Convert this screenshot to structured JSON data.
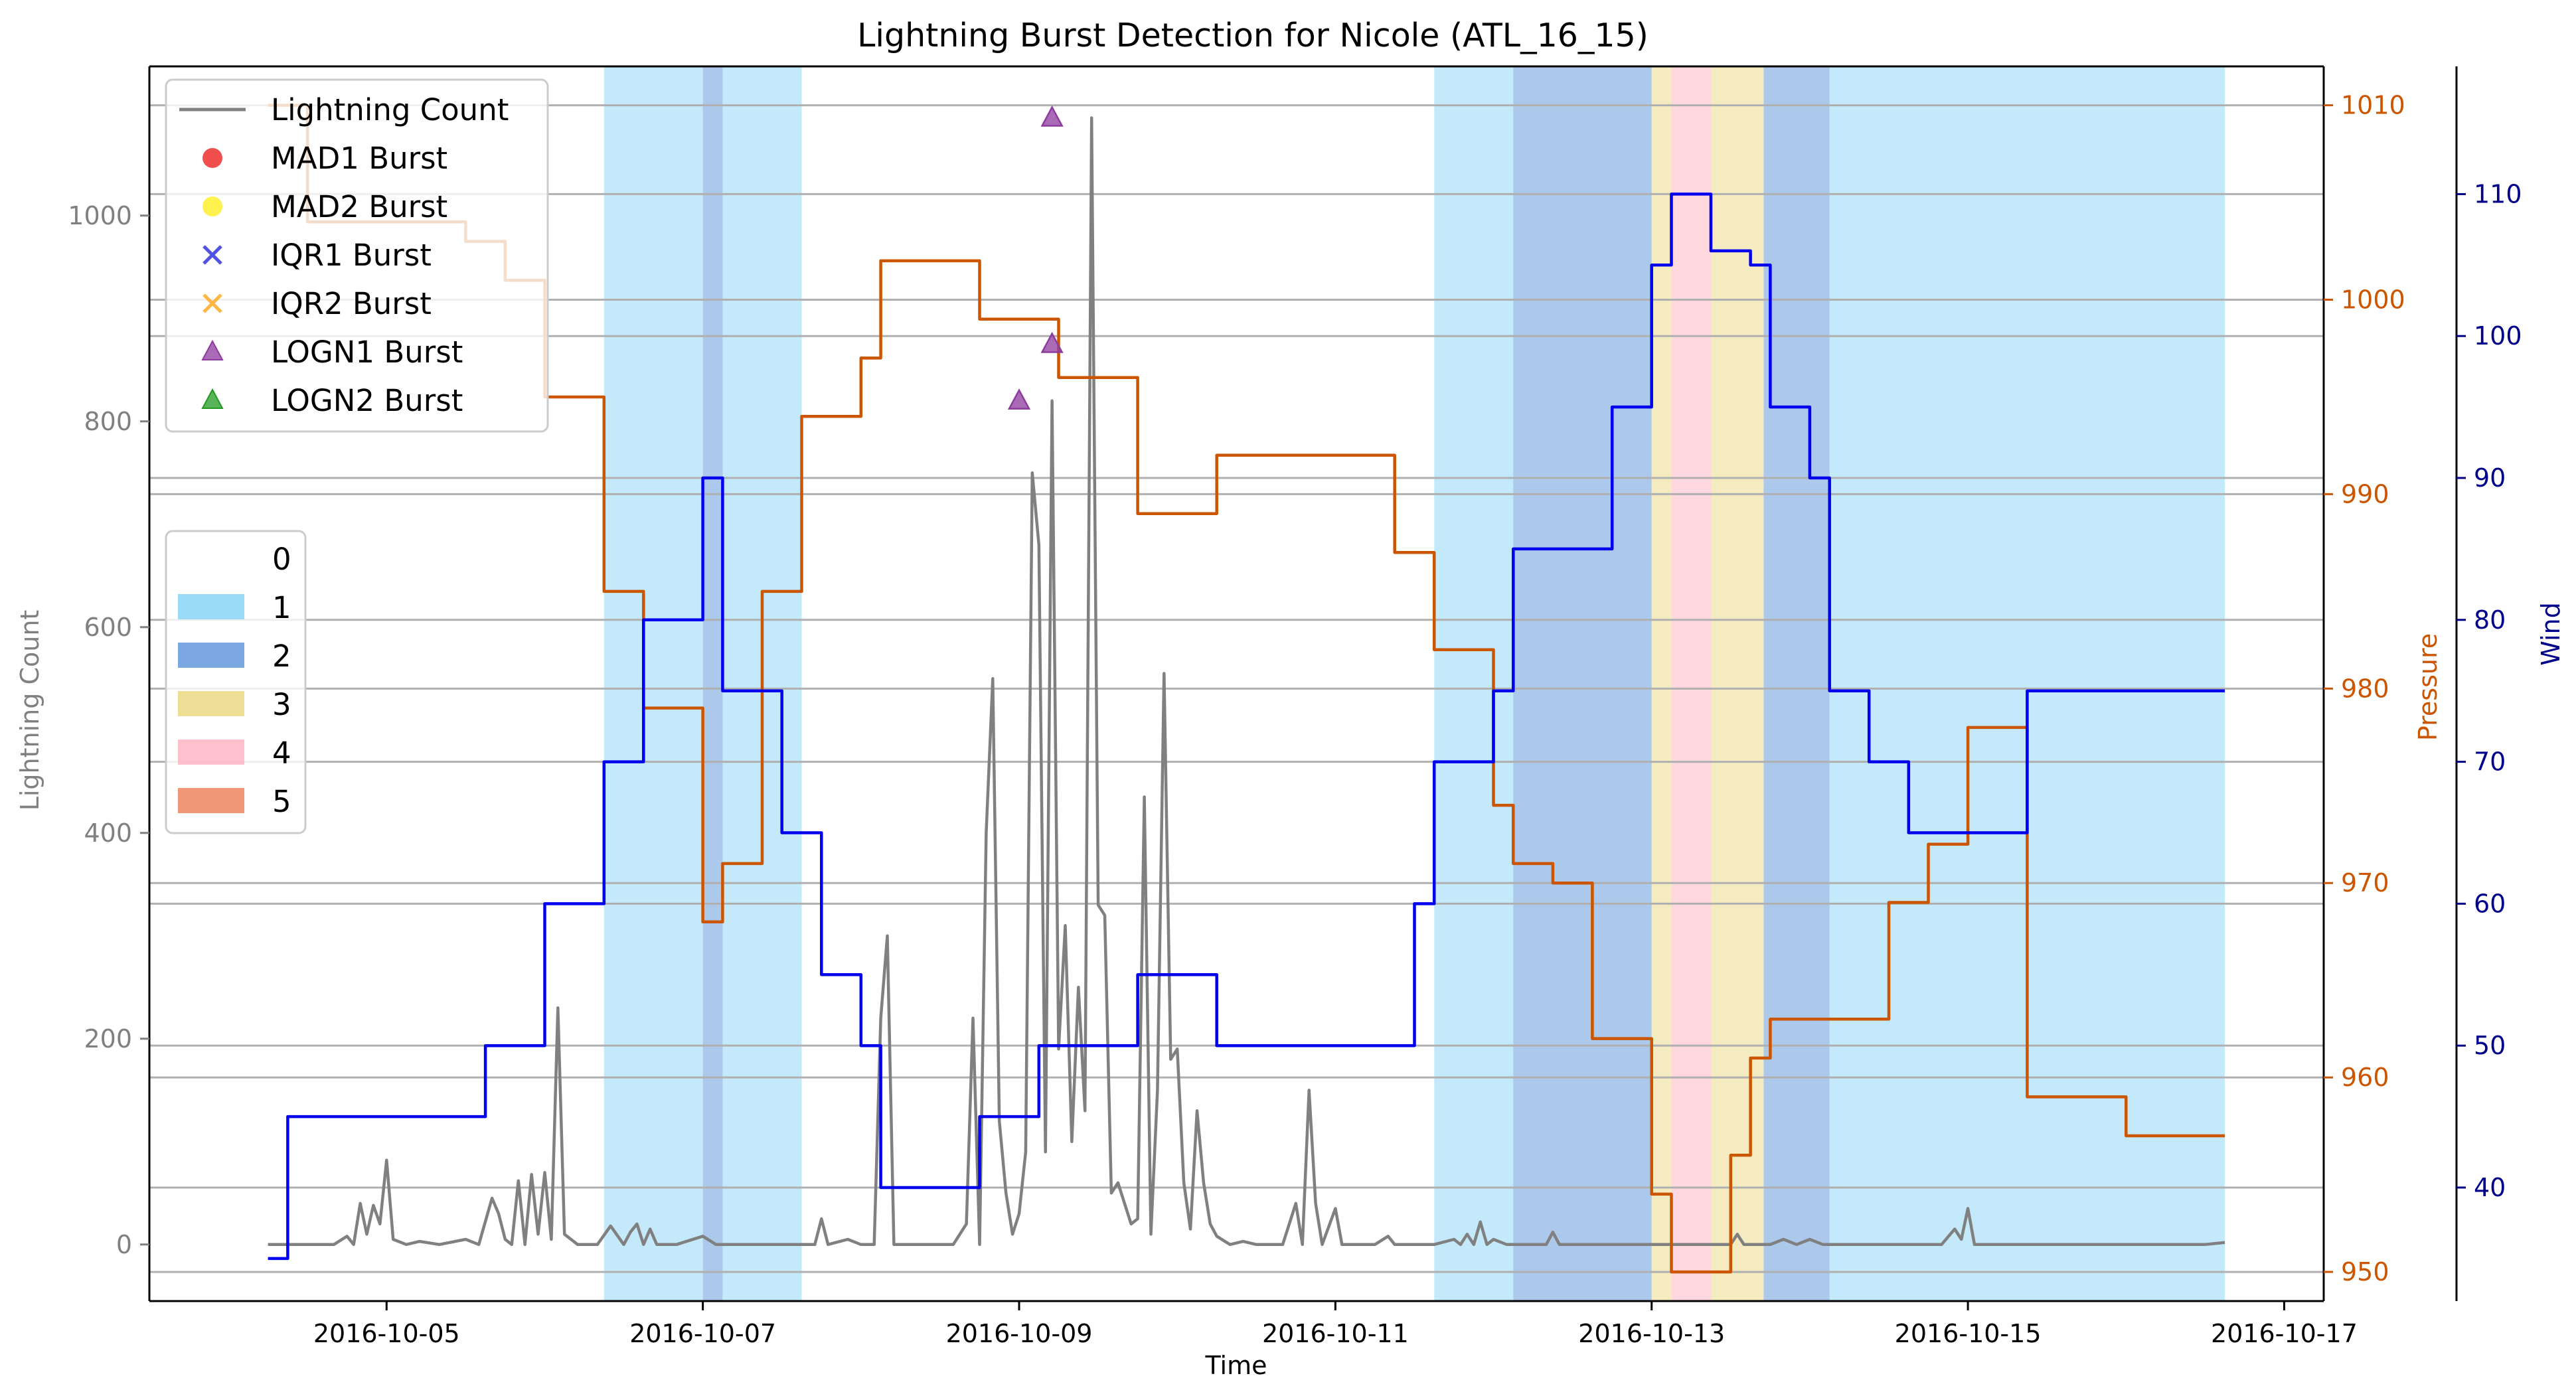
{
  "chart_data": {
    "type": "line",
    "title": "Lightning Burst Detection for Nicole (ATL_16_15)",
    "xlabel": "Time",
    "ylabel_left": "Lightning Count",
    "ylabel_right_1": "Pressure",
    "ylabel_right_2": "Wind",
    "x_range": [
      "2016-10-03T12:00",
      "2016-10-17T06:00"
    ],
    "x_ticks": [
      "2016-10-05",
      "2016-10-07",
      "2016-10-09",
      "2016-10-11",
      "2016-10-13",
      "2016-10-15",
      "2016-10-17"
    ],
    "y_left_range": [
      -55,
      1145
    ],
    "y_left_ticks": [
      0,
      200,
      400,
      600,
      800,
      1000
    ],
    "y_pressure_range": [
      948.5,
      1012
    ],
    "y_pressure_ticks": [
      950,
      960,
      970,
      980,
      990,
      1000,
      1010
    ],
    "y_wind_range": [
      32,
      119
    ],
    "y_wind_ticks": [
      40,
      50,
      60,
      70,
      80,
      90,
      100,
      110
    ],
    "grid": "horizontal-right-axis",
    "colors": {
      "lightning": "#808080",
      "pressure": "#cc5500",
      "wind": "#0000ee",
      "cat1": "#87d4f5",
      "cat2": "#5a92d8",
      "cat3": "#ecd883",
      "cat4": "#ffb0c0",
      "cat5": "#ee7d55",
      "mad1": "#ee2222",
      "mad2": "#ffee22",
      "iqr1": "#3333dd",
      "iqr2": "#ffaa22",
      "logn1": "#8e3a9e",
      "logn2": "#229922"
    },
    "category_spans": [
      {
        "category": 1,
        "start": "2016-10-06T09:00",
        "end": "2016-10-07T00:00"
      },
      {
        "category": 2,
        "start": "2016-10-07T00:00",
        "end": "2016-10-07T03:00"
      },
      {
        "category": 1,
        "start": "2016-10-07T03:00",
        "end": "2016-10-07T15:00"
      },
      {
        "category": 1,
        "start": "2016-10-11T15:00",
        "end": "2016-10-12T03:00"
      },
      {
        "category": 2,
        "start": "2016-10-12T03:00",
        "end": "2016-10-13T00:00"
      },
      {
        "category": 3,
        "start": "2016-10-13T00:00",
        "end": "2016-10-13T03:00"
      },
      {
        "category": 4,
        "start": "2016-10-13T03:00",
        "end": "2016-10-13T09:00"
      },
      {
        "category": 3,
        "start": "2016-10-13T09:00",
        "end": "2016-10-13T17:00"
      },
      {
        "category": 2,
        "start": "2016-10-13T17:00",
        "end": "2016-10-14T03:00"
      },
      {
        "category": 1,
        "start": "2016-10-14T03:00",
        "end": "2016-10-16T15:00"
      }
    ],
    "series": [
      {
        "name": "Lightning Count",
        "axis": "left",
        "step": false,
        "points": [
          [
            "2016-10-04T06:00",
            0
          ],
          [
            "2016-10-04T12:00",
            0
          ],
          [
            "2016-10-04T16:00",
            0
          ],
          [
            "2016-10-04T18:00",
            8
          ],
          [
            "2016-10-04T19:00",
            0
          ],
          [
            "2016-10-04T20:00",
            40
          ],
          [
            "2016-10-04T21:00",
            10
          ],
          [
            "2016-10-04T22:00",
            38
          ],
          [
            "2016-10-04T23:00",
            20
          ],
          [
            "2016-10-05T00:00",
            82
          ],
          [
            "2016-10-05T01:00",
            5
          ],
          [
            "2016-10-05T03:00",
            0
          ],
          [
            "2016-10-05T05:00",
            3
          ],
          [
            "2016-10-05T08:00",
            0
          ],
          [
            "2016-10-05T12:00",
            5
          ],
          [
            "2016-10-05T14:00",
            0
          ],
          [
            "2016-10-05T16:00",
            45
          ],
          [
            "2016-10-05T17:00",
            30
          ],
          [
            "2016-10-05T18:00",
            5
          ],
          [
            "2016-10-05T19:00",
            0
          ],
          [
            "2016-10-05T20:00",
            62
          ],
          [
            "2016-10-05T21:00",
            0
          ],
          [
            "2016-10-05T22:00",
            68
          ],
          [
            "2016-10-05T23:00",
            10
          ],
          [
            "2016-10-06T00:00",
            70
          ],
          [
            "2016-10-06T01:00",
            5
          ],
          [
            "2016-10-06T02:00",
            230
          ],
          [
            "2016-10-06T03:00",
            10
          ],
          [
            "2016-10-06T05:00",
            0
          ],
          [
            "2016-10-06T08:00",
            0
          ],
          [
            "2016-10-06T10:00",
            18
          ],
          [
            "2016-10-06T12:00",
            0
          ],
          [
            "2016-10-06T13:00",
            12
          ],
          [
            "2016-10-06T14:00",
            20
          ],
          [
            "2016-10-06T15:00",
            0
          ],
          [
            "2016-10-06T16:00",
            15
          ],
          [
            "2016-10-06T17:00",
            0
          ],
          [
            "2016-10-06T20:00",
            0
          ],
          [
            "2016-10-07T00:00",
            8
          ],
          [
            "2016-10-07T02:00",
            0
          ],
          [
            "2016-10-07T12:00",
            0
          ],
          [
            "2016-10-07T17:00",
            0
          ],
          [
            "2016-10-07T18:00",
            25
          ],
          [
            "2016-10-07T19:00",
            0
          ],
          [
            "2016-10-07T22:00",
            5
          ],
          [
            "2016-10-08T00:00",
            0
          ],
          [
            "2016-10-08T02:00",
            0
          ],
          [
            "2016-10-08T03:00",
            220
          ],
          [
            "2016-10-08T04:00",
            300
          ],
          [
            "2016-10-08T05:00",
            0
          ],
          [
            "2016-10-08T14:00",
            0
          ],
          [
            "2016-10-08T16:00",
            20
          ],
          [
            "2016-10-08T17:00",
            220
          ],
          [
            "2016-10-08T18:00",
            0
          ],
          [
            "2016-10-08T19:00",
            400
          ],
          [
            "2016-10-08T20:00",
            550
          ],
          [
            "2016-10-08T21:00",
            120
          ],
          [
            "2016-10-08T22:00",
            50
          ],
          [
            "2016-10-08T23:00",
            10
          ],
          [
            "2016-10-09T00:00",
            30
          ],
          [
            "2016-10-09T01:00",
            90
          ],
          [
            "2016-10-09T02:00",
            750
          ],
          [
            "2016-10-09T03:00",
            680
          ],
          [
            "2016-10-09T04:00",
            90
          ],
          [
            "2016-10-09T05:00",
            820
          ],
          [
            "2016-10-09T06:00",
            190
          ],
          [
            "2016-10-09T07:00",
            310
          ],
          [
            "2016-10-09T08:00",
            100
          ],
          [
            "2016-10-09T09:00",
            250
          ],
          [
            "2016-10-09T10:00",
            130
          ],
          [
            "2016-10-09T11:00",
            1095
          ],
          [
            "2016-10-09T12:00",
            330
          ],
          [
            "2016-10-09T13:00",
            320
          ],
          [
            "2016-10-09T14:00",
            50
          ],
          [
            "2016-10-09T15:00",
            60
          ],
          [
            "2016-10-09T16:00",
            40
          ],
          [
            "2016-10-09T17:00",
            20
          ],
          [
            "2016-10-09T18:00",
            25
          ],
          [
            "2016-10-09T19:00",
            435
          ],
          [
            "2016-10-09T20:00",
            10
          ],
          [
            "2016-10-09T21:00",
            150
          ],
          [
            "2016-10-09T22:00",
            555
          ],
          [
            "2016-10-09T23:00",
            180
          ],
          [
            "2016-10-10T00:00",
            190
          ],
          [
            "2016-10-10T01:00",
            60
          ],
          [
            "2016-10-10T02:00",
            15
          ],
          [
            "2016-10-10T03:00",
            130
          ],
          [
            "2016-10-10T04:00",
            60
          ],
          [
            "2016-10-10T05:00",
            20
          ],
          [
            "2016-10-10T06:00",
            8
          ],
          [
            "2016-10-10T08:00",
            0
          ],
          [
            "2016-10-10T10:00",
            3
          ],
          [
            "2016-10-10T12:00",
            0
          ],
          [
            "2016-10-10T16:00",
            0
          ],
          [
            "2016-10-10T18:00",
            40
          ],
          [
            "2016-10-10T19:00",
            0
          ],
          [
            "2016-10-10T20:00",
            150
          ],
          [
            "2016-10-10T21:00",
            40
          ],
          [
            "2016-10-10T22:00",
            0
          ],
          [
            "2016-10-11T00:00",
            35
          ],
          [
            "2016-10-11T01:00",
            0
          ],
          [
            "2016-10-11T06:00",
            0
          ],
          [
            "2016-10-11T08:00",
            8
          ],
          [
            "2016-10-11T09:00",
            0
          ],
          [
            "2016-10-11T15:00",
            0
          ],
          [
            "2016-10-11T18:00",
            5
          ],
          [
            "2016-10-11T19:00",
            0
          ],
          [
            "2016-10-11T20:00",
            10
          ],
          [
            "2016-10-11T21:00",
            0
          ],
          [
            "2016-10-11T22:00",
            22
          ],
          [
            "2016-10-11T23:00",
            0
          ],
          [
            "2016-10-12T00:00",
            5
          ],
          [
            "2016-10-12T02:00",
            0
          ],
          [
            "2016-10-12T08:00",
            0
          ],
          [
            "2016-10-12T09:00",
            12
          ],
          [
            "2016-10-12T10:00",
            0
          ],
          [
            "2016-10-13T12:00",
            0
          ],
          [
            "2016-10-13T13:00",
            10
          ],
          [
            "2016-10-13T14:00",
            0
          ],
          [
            "2016-10-13T18:00",
            0
          ],
          [
            "2016-10-13T20:00",
            5
          ],
          [
            "2016-10-13T22:00",
            0
          ],
          [
            "2016-10-14T00:00",
            5
          ],
          [
            "2016-10-14T02:00",
            0
          ],
          [
            "2016-10-14T20:00",
            0
          ],
          [
            "2016-10-14T22:00",
            15
          ],
          [
            "2016-10-14T23:00",
            5
          ],
          [
            "2016-10-15T00:00",
            35
          ],
          [
            "2016-10-15T01:00",
            0
          ],
          [
            "2016-10-16T12:00",
            0
          ],
          [
            "2016-10-16T15:00",
            2
          ]
        ]
      },
      {
        "name": "Pressure",
        "axis": "pressure",
        "step": true,
        "points": [
          [
            "2016-10-04T06:00",
            1010
          ],
          [
            "2016-10-04T12:00",
            1004
          ],
          [
            "2016-10-05T12:00",
            1003
          ],
          [
            "2016-10-05T18:00",
            1001
          ],
          [
            "2016-10-06T00:00",
            995
          ],
          [
            "2016-10-06T09:00",
            985
          ],
          [
            "2016-10-06T15:00",
            979
          ],
          [
            "2016-10-07T00:00",
            968
          ],
          [
            "2016-10-07T03:00",
            971
          ],
          [
            "2016-10-07T09:00",
            985
          ],
          [
            "2016-10-07T15:00",
            994
          ],
          [
            "2016-10-08T00:00",
            997
          ],
          [
            "2016-10-08T03:00",
            1002
          ],
          [
            "2016-10-08T18:00",
            999
          ],
          [
            "2016-10-09T06:00",
            996
          ],
          [
            "2016-10-09T18:00",
            989
          ],
          [
            "2016-10-10T06:00",
            992
          ],
          [
            "2016-10-11T09:00",
            987
          ],
          [
            "2016-10-11T15:00",
            982
          ],
          [
            "2016-10-12T00:00",
            974
          ],
          [
            "2016-10-12T03:00",
            971
          ],
          [
            "2016-10-12T09:00",
            970
          ],
          [
            "2016-10-12T15:00",
            962
          ],
          [
            "2016-10-13T00:00",
            954
          ],
          [
            "2016-10-13T03:00",
            950
          ],
          [
            "2016-10-13T09:00",
            950
          ],
          [
            "2016-10-13T12:00",
            956
          ],
          [
            "2016-10-13T15:00",
            961
          ],
          [
            "2016-10-13T18:00",
            963
          ],
          [
            "2016-10-14T12:00",
            969
          ],
          [
            "2016-10-14T18:00",
            972
          ],
          [
            "2016-10-15T00:00",
            978
          ],
          [
            "2016-10-15T09:00",
            959
          ],
          [
            "2016-10-16T00:00",
            957
          ],
          [
            "2016-10-16T15:00",
            957
          ]
        ]
      },
      {
        "name": "Wind",
        "axis": "wind",
        "step": true,
        "points": [
          [
            "2016-10-04T06:00",
            35
          ],
          [
            "2016-10-04T09:00",
            45
          ],
          [
            "2016-10-05T15:00",
            50
          ],
          [
            "2016-10-06T00:00",
            60
          ],
          [
            "2016-10-06T09:00",
            70
          ],
          [
            "2016-10-06T15:00",
            80
          ],
          [
            "2016-10-07T00:00",
            90
          ],
          [
            "2016-10-07T03:00",
            75
          ],
          [
            "2016-10-07T12:00",
            65
          ],
          [
            "2016-10-07T18:00",
            55
          ],
          [
            "2016-10-08T00:00",
            50
          ],
          [
            "2016-10-08T03:00",
            40
          ],
          [
            "2016-10-08T18:00",
            45
          ],
          [
            "2016-10-09T03:00",
            50
          ],
          [
            "2016-10-09T18:00",
            55
          ],
          [
            "2016-10-10T06:00",
            50
          ],
          [
            "2016-10-11T12:00",
            60
          ],
          [
            "2016-10-11T15:00",
            70
          ],
          [
            "2016-10-12T00:00",
            75
          ],
          [
            "2016-10-12T03:00",
            85
          ],
          [
            "2016-10-12T18:00",
            95
          ],
          [
            "2016-10-13T00:00",
            105
          ],
          [
            "2016-10-13T03:00",
            110
          ],
          [
            "2016-10-13T09:00",
            106
          ],
          [
            "2016-10-13T15:00",
            105
          ],
          [
            "2016-10-13T18:00",
            95
          ],
          [
            "2016-10-14T00:00",
            90
          ],
          [
            "2016-10-14T03:00",
            75
          ],
          [
            "2016-10-14T09:00",
            70
          ],
          [
            "2016-10-14T15:00",
            65
          ],
          [
            "2016-10-15T09:00",
            75
          ],
          [
            "2016-10-16T15:00",
            75
          ]
        ]
      }
    ],
    "burst_markers": [
      {
        "method": "LOGN1",
        "x": "2016-10-09T00:00",
        "y": 820
      },
      {
        "method": "LOGN1",
        "x": "2016-10-09T05:00",
        "y": 1095
      },
      {
        "method": "LOGN1",
        "x": "2016-10-09T05:00",
        "y": 875
      }
    ],
    "legend_top": {
      "position": "top-left",
      "entries": [
        {
          "label": "Lightning Count",
          "marker": "line",
          "color": "lightning"
        },
        {
          "label": "MAD1 Burst",
          "marker": "circle",
          "color": "mad1"
        },
        {
          "label": "MAD2 Burst",
          "marker": "circle",
          "color": "mad2"
        },
        {
          "label": "IQR1 Burst",
          "marker": "x",
          "color": "iqr1"
        },
        {
          "label": "IQR2 Burst",
          "marker": "x",
          "color": "iqr2"
        },
        {
          "label": "LOGN1 Burst",
          "marker": "triangle",
          "color": "logn1"
        },
        {
          "label": "LOGN2 Burst",
          "marker": "triangle",
          "color": "logn2"
        }
      ]
    },
    "legend_categories": {
      "position": "center-left",
      "entries": [
        {
          "label": "0",
          "color": null
        },
        {
          "label": "1",
          "color": "cat1"
        },
        {
          "label": "2",
          "color": "cat2"
        },
        {
          "label": "3",
          "color": "cat3"
        },
        {
          "label": "4",
          "color": "cat4"
        },
        {
          "label": "5",
          "color": "cat5"
        }
      ]
    }
  }
}
